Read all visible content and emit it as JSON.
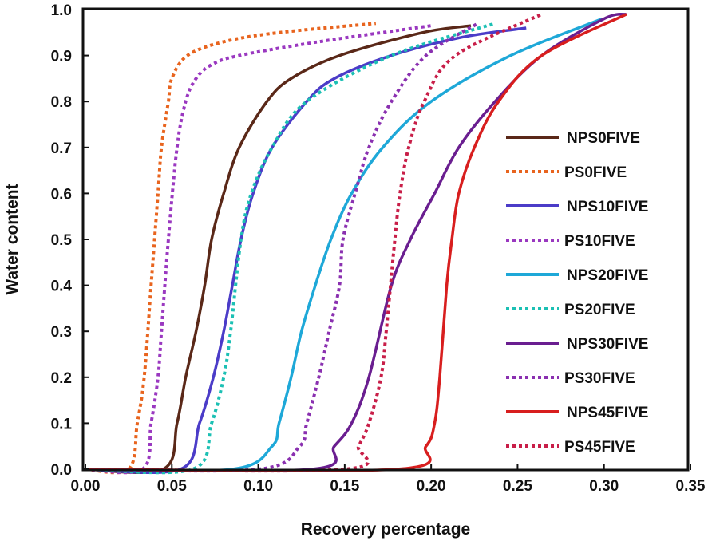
{
  "chart_data": {
    "type": "line",
    "title": "",
    "xlabel": "Recovery percentage",
    "ylabel": "Water content",
    "xlim": [
      0,
      0.35
    ],
    "ylim": [
      0,
      1.0
    ],
    "xticks": [
      "0.00",
      "0.05",
      "0.10",
      "0.15",
      "0.20",
      "0.25",
      "0.30",
      "0.35"
    ],
    "yticks": [
      "0.0",
      "0.1",
      "0.2",
      "0.3",
      "0.4",
      "0.5",
      "0.6",
      "0.7",
      "0.8",
      "0.9",
      "1.0"
    ],
    "grid": false,
    "legend_position": "right",
    "series": [
      {
        "name": "NPS0FIVE",
        "style": "solid",
        "color": "#5a2818",
        "points": [
          [
            0,
            0
          ],
          [
            0.045,
            0
          ],
          [
            0.053,
            0.1
          ],
          [
            0.058,
            0.2
          ],
          [
            0.064,
            0.3
          ],
          [
            0.069,
            0.4
          ],
          [
            0.073,
            0.5
          ],
          [
            0.08,
            0.6
          ],
          [
            0.089,
            0.7
          ],
          [
            0.105,
            0.8
          ],
          [
            0.119,
            0.85
          ],
          [
            0.147,
            0.9
          ],
          [
            0.195,
            0.95
          ],
          [
            0.223,
            0.965
          ]
        ]
      },
      {
        "name": "PS0FIVE",
        "style": "dotted",
        "color": "#e8641e",
        "points": [
          [
            0,
            0
          ],
          [
            0.025,
            0
          ],
          [
            0.03,
            0.1
          ],
          [
            0.034,
            0.2
          ],
          [
            0.038,
            0.4
          ],
          [
            0.042,
            0.6
          ],
          [
            0.044,
            0.7
          ],
          [
            0.048,
            0.8
          ],
          [
            0.05,
            0.85
          ],
          [
            0.059,
            0.9
          ],
          [
            0.08,
            0.93
          ],
          [
            0.112,
            0.95
          ],
          [
            0.168,
            0.97
          ]
        ]
      },
      {
        "name": "NPS10FIVE",
        "style": "solid",
        "color": "#4b3cc8",
        "points": [
          [
            0,
            0
          ],
          [
            0.055,
            0
          ],
          [
            0.066,
            0.1
          ],
          [
            0.074,
            0.2
          ],
          [
            0.08,
            0.3
          ],
          [
            0.085,
            0.4
          ],
          [
            0.09,
            0.5
          ],
          [
            0.097,
            0.6
          ],
          [
            0.108,
            0.7
          ],
          [
            0.128,
            0.8
          ],
          [
            0.144,
            0.85
          ],
          [
            0.177,
            0.9
          ],
          [
            0.218,
            0.94
          ],
          [
            0.255,
            0.96
          ]
        ]
      },
      {
        "name": "PS10FIVE",
        "style": "dotted",
        "color": "#9a38c0",
        "points": [
          [
            0,
            0
          ],
          [
            0.033,
            0
          ],
          [
            0.038,
            0.1
          ],
          [
            0.042,
            0.2
          ],
          [
            0.044,
            0.3
          ],
          [
            0.048,
            0.5
          ],
          [
            0.053,
            0.7
          ],
          [
            0.058,
            0.8
          ],
          [
            0.064,
            0.85
          ],
          [
            0.073,
            0.88
          ],
          [
            0.089,
            0.9
          ],
          [
            0.135,
            0.93
          ],
          [
            0.2,
            0.965
          ]
        ]
      },
      {
        "name": "NPS20FIVE",
        "style": "solid",
        "color": "#1ea8d8",
        "points": [
          [
            0,
            0
          ],
          [
            0.085,
            0
          ],
          [
            0.108,
            0.05
          ],
          [
            0.112,
            0.1
          ],
          [
            0.119,
            0.2
          ],
          [
            0.125,
            0.3
          ],
          [
            0.133,
            0.4
          ],
          [
            0.142,
            0.5
          ],
          [
            0.154,
            0.6
          ],
          [
            0.172,
            0.7
          ],
          [
            0.2,
            0.8
          ],
          [
            0.246,
            0.9
          ],
          [
            0.299,
            0.98
          ]
        ]
      },
      {
        "name": "PS20FIVE",
        "style": "dotted",
        "color": "#1cc0b4",
        "points": [
          [
            0,
            0
          ],
          [
            0.062,
            0
          ],
          [
            0.073,
            0.1
          ],
          [
            0.08,
            0.2
          ],
          [
            0.084,
            0.3
          ],
          [
            0.09,
            0.5
          ],
          [
            0.096,
            0.6
          ],
          [
            0.108,
            0.7
          ],
          [
            0.128,
            0.8
          ],
          [
            0.177,
            0.9
          ],
          [
            0.237,
            0.97
          ]
        ]
      },
      {
        "name": "NPS30FIVE",
        "style": "solid",
        "color": "#6a1e90",
        "points": [
          [
            0,
            0
          ],
          [
            0.131,
            0
          ],
          [
            0.144,
            0.05
          ],
          [
            0.154,
            0.1
          ],
          [
            0.164,
            0.2
          ],
          [
            0.177,
            0.4
          ],
          [
            0.188,
            0.5
          ],
          [
            0.202,
            0.6
          ],
          [
            0.216,
            0.7
          ],
          [
            0.237,
            0.8
          ],
          [
            0.264,
            0.9
          ],
          [
            0.3,
            0.98
          ],
          [
            0.313,
            0.99
          ]
        ]
      },
      {
        "name": "PS30FIVE",
        "style": "dotted",
        "color": "#8a30b0",
        "points": [
          [
            0,
            0
          ],
          [
            0.1,
            0
          ],
          [
            0.124,
            0.05
          ],
          [
            0.128,
            0.1
          ],
          [
            0.135,
            0.2
          ],
          [
            0.141,
            0.3
          ],
          [
            0.147,
            0.4
          ],
          [
            0.149,
            0.5
          ],
          [
            0.156,
            0.6
          ],
          [
            0.164,
            0.7
          ],
          [
            0.177,
            0.8
          ],
          [
            0.197,
            0.9
          ],
          [
            0.227,
            0.97
          ]
        ]
      },
      {
        "name": "NPS45FIVE",
        "style": "solid",
        "color": "#d81e1e",
        "points": [
          [
            0,
            0
          ],
          [
            0.18,
            0
          ],
          [
            0.197,
            0.05
          ],
          [
            0.202,
            0.1
          ],
          [
            0.205,
            0.2
          ],
          [
            0.209,
            0.4
          ],
          [
            0.212,
            0.5
          ],
          [
            0.216,
            0.6
          ],
          [
            0.225,
            0.7
          ],
          [
            0.239,
            0.8
          ],
          [
            0.264,
            0.9
          ],
          [
            0.313,
            0.99
          ]
        ]
      },
      {
        "name": "PS45FIVE",
        "style": "dotted",
        "color": "#c81e48",
        "points": [
          [
            0,
            0
          ],
          [
            0.15,
            0
          ],
          [
            0.158,
            0.05
          ],
          [
            0.164,
            0.1
          ],
          [
            0.171,
            0.2
          ],
          [
            0.174,
            0.3
          ],
          [
            0.179,
            0.5
          ],
          [
            0.182,
            0.6
          ],
          [
            0.187,
            0.7
          ],
          [
            0.196,
            0.8
          ],
          [
            0.214,
            0.9
          ],
          [
            0.264,
            0.99
          ]
        ]
      }
    ]
  }
}
